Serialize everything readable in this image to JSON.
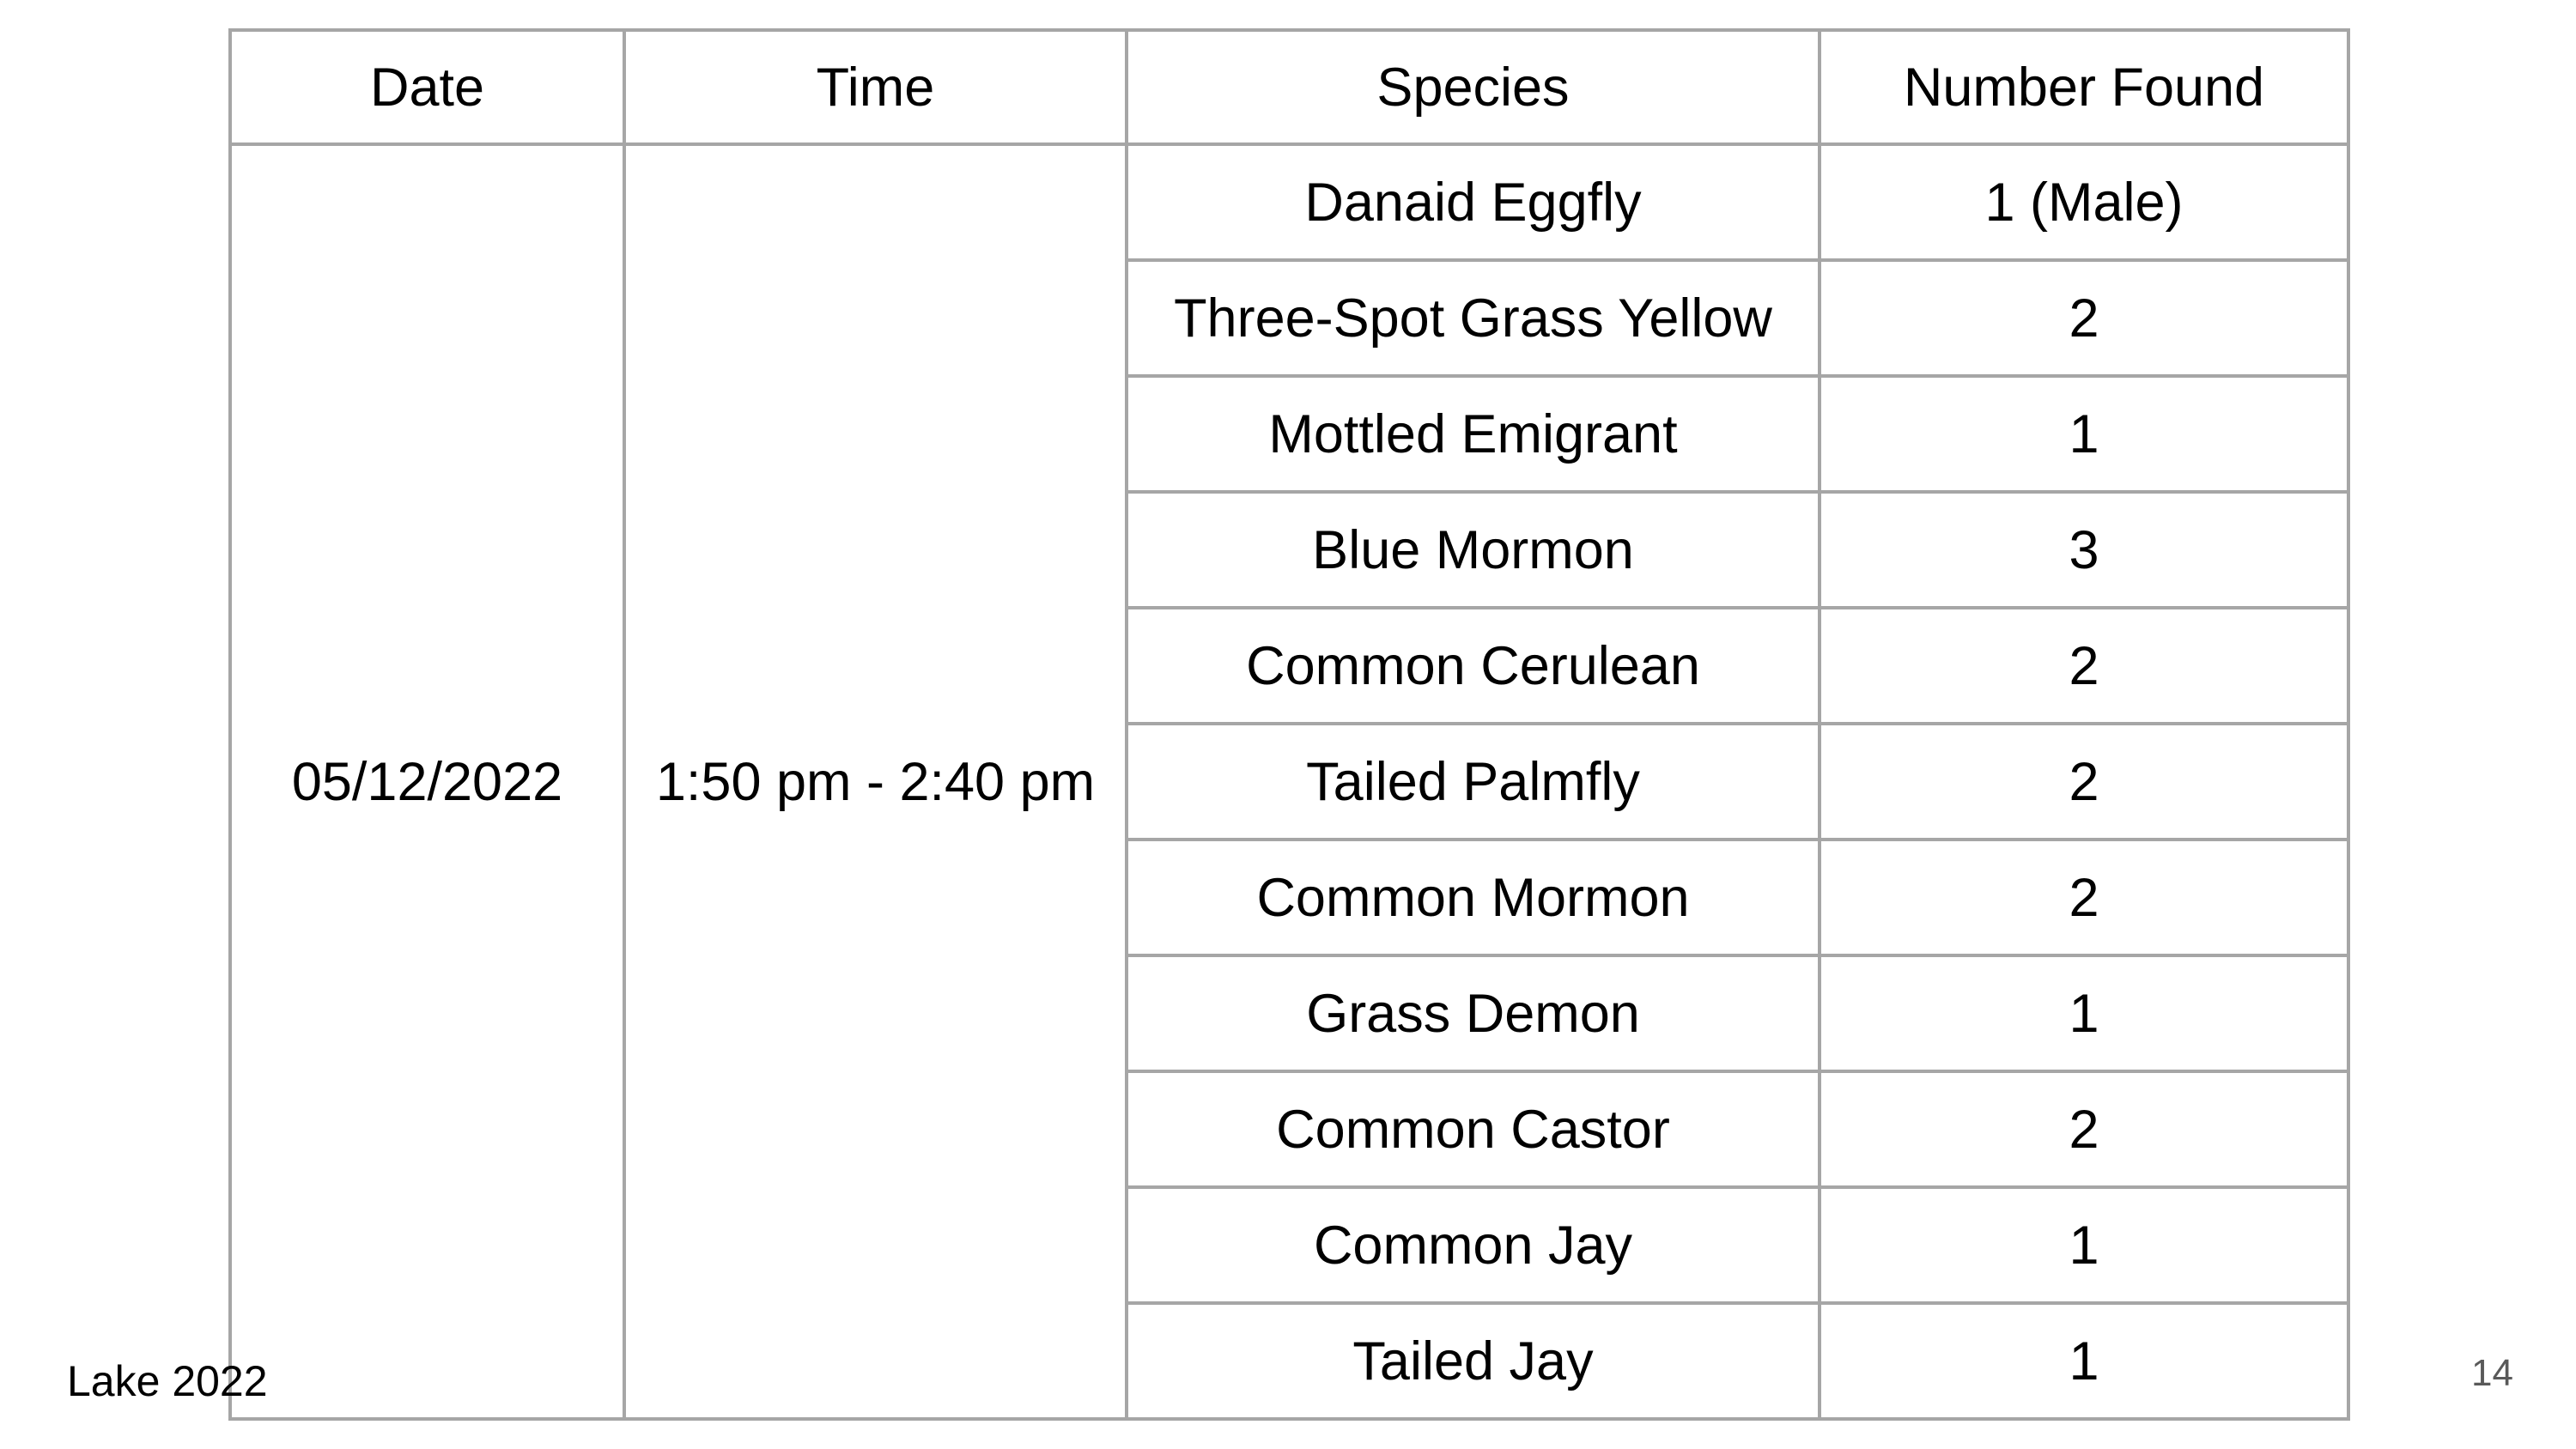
{
  "footer": {
    "citation": "Lake 2022",
    "page_number": "14"
  },
  "table": {
    "headers": [
      "Date",
      "Time",
      "Species",
      "Number Found"
    ],
    "date": "05/12/2022",
    "time_range": "1:50 pm - 2:40 pm",
    "rows": [
      {
        "species": "Danaid Eggfly",
        "number": "1 (Male)"
      },
      {
        "species": "Three-Spot Grass Yellow",
        "number": "2"
      },
      {
        "species": "Mottled Emigrant",
        "number": "1"
      },
      {
        "species": "Blue Mormon",
        "number": "3"
      },
      {
        "species": "Common Cerulean",
        "number": "2"
      },
      {
        "species": "Tailed Palmfly",
        "number": "2"
      },
      {
        "species": "Common Mormon",
        "number": "2"
      },
      {
        "species": "Grass Demon",
        "number": "1"
      },
      {
        "species": "Common Castor",
        "number": "2"
      },
      {
        "species": "Common Jay",
        "number": "1"
      },
      {
        "species": "Tailed Jay",
        "number": "1"
      }
    ],
    "colors": {
      "border": "#a6a6a6",
      "text": "#000000",
      "page_number": "#595959",
      "background": "#ffffff"
    }
  }
}
